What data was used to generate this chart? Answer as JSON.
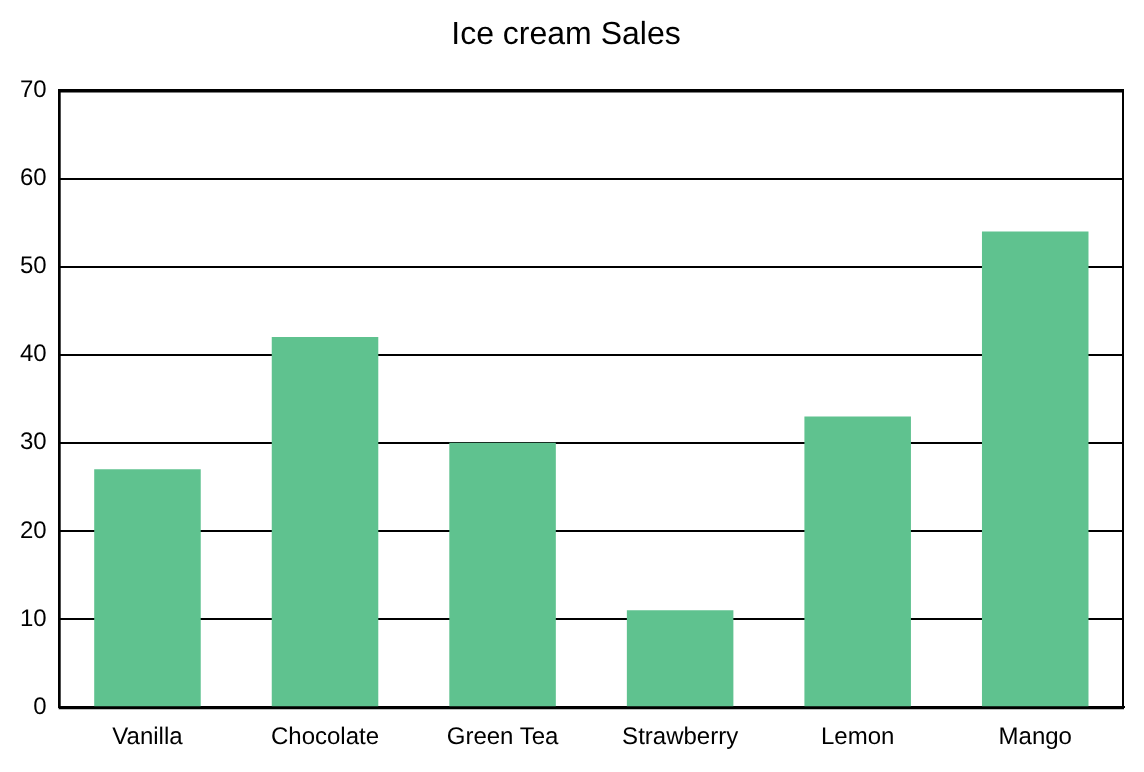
{
  "chart_data": {
    "type": "bar",
    "title": "Ice cream Sales",
    "categories": [
      "Vanilla",
      "Chocolate",
      "Green Tea",
      "Strawberry",
      "Lemon",
      "Mango"
    ],
    "values": [
      27,
      42,
      30,
      11,
      33,
      54
    ],
    "color": "#5fc28f",
    "ylim": [
      0,
      70
    ],
    "yticks": [
      0,
      10,
      20,
      30,
      40,
      50,
      60,
      70
    ],
    "grid": "y",
    "legend": false
  }
}
